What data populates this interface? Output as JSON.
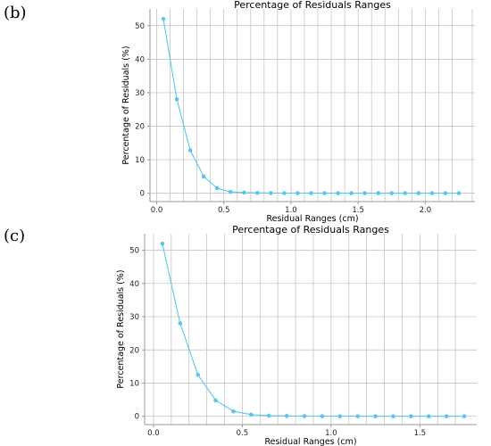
{
  "panels": [
    {
      "label": "(b)"
    },
    {
      "label": "(c)"
    }
  ],
  "chart_data": [
    {
      "type": "line",
      "title": "Percentage of Residuals Ranges",
      "xlabel": "Residual Ranges (cm)",
      "ylabel": "Percentage of Residuals (%)",
      "xlim": [
        -0.05,
        2.37
      ],
      "ylim": [
        -2.5,
        55
      ],
      "xticks": [
        "0.0",
        "0.5",
        "1.0",
        "1.5",
        "2.0"
      ],
      "yticks": [
        "0",
        "10",
        "20",
        "30",
        "40",
        "50"
      ],
      "grid": true,
      "color": "#5bc6ec",
      "series": [
        {
          "x": [
            0.05,
            0.15,
            0.25,
            0.35,
            0.45,
            0.55,
            0.65,
            0.75,
            0.85,
            0.95,
            1.05,
            1.15,
            1.25,
            1.35,
            1.45,
            1.55,
            1.65,
            1.75,
            1.85,
            1.95,
            2.05,
            2.15,
            2.25
          ],
          "values": [
            52,
            28,
            12.8,
            5,
            1.5,
            0.4,
            0.2,
            0.1,
            0.05,
            0.03,
            0.02,
            0.02,
            0.01,
            0.01,
            0.01,
            0.01,
            0.01,
            0.01,
            0.01,
            0.01,
            0.01,
            0.01,
            0.01
          ]
        }
      ]
    },
    {
      "type": "line",
      "title": "Percentage of Residuals Ranges",
      "xlabel": "Residual Ranges (cm)",
      "ylabel": "Percentage of Residuals (%)",
      "xlim": [
        -0.05,
        1.82
      ],
      "ylim": [
        -2.5,
        55
      ],
      "xticks": [
        "0.0",
        "0.5",
        "1.0",
        "1.5"
      ],
      "yticks": [
        "0",
        "10",
        "20",
        "30",
        "40",
        "50"
      ],
      "grid": true,
      "color": "#5bc6ec",
      "series": [
        {
          "x": [
            0.05,
            0.15,
            0.25,
            0.35,
            0.45,
            0.55,
            0.65,
            0.75,
            0.85,
            0.95,
            1.05,
            1.15,
            1.25,
            1.35,
            1.45,
            1.55,
            1.65,
            1.75
          ],
          "values": [
            52,
            28,
            12.5,
            4.8,
            1.5,
            0.5,
            0.2,
            0.1,
            0.05,
            0.03,
            0.02,
            0.02,
            0.01,
            0.01,
            0.01,
            0.01,
            0.01,
            0.01
          ]
        }
      ]
    }
  ]
}
